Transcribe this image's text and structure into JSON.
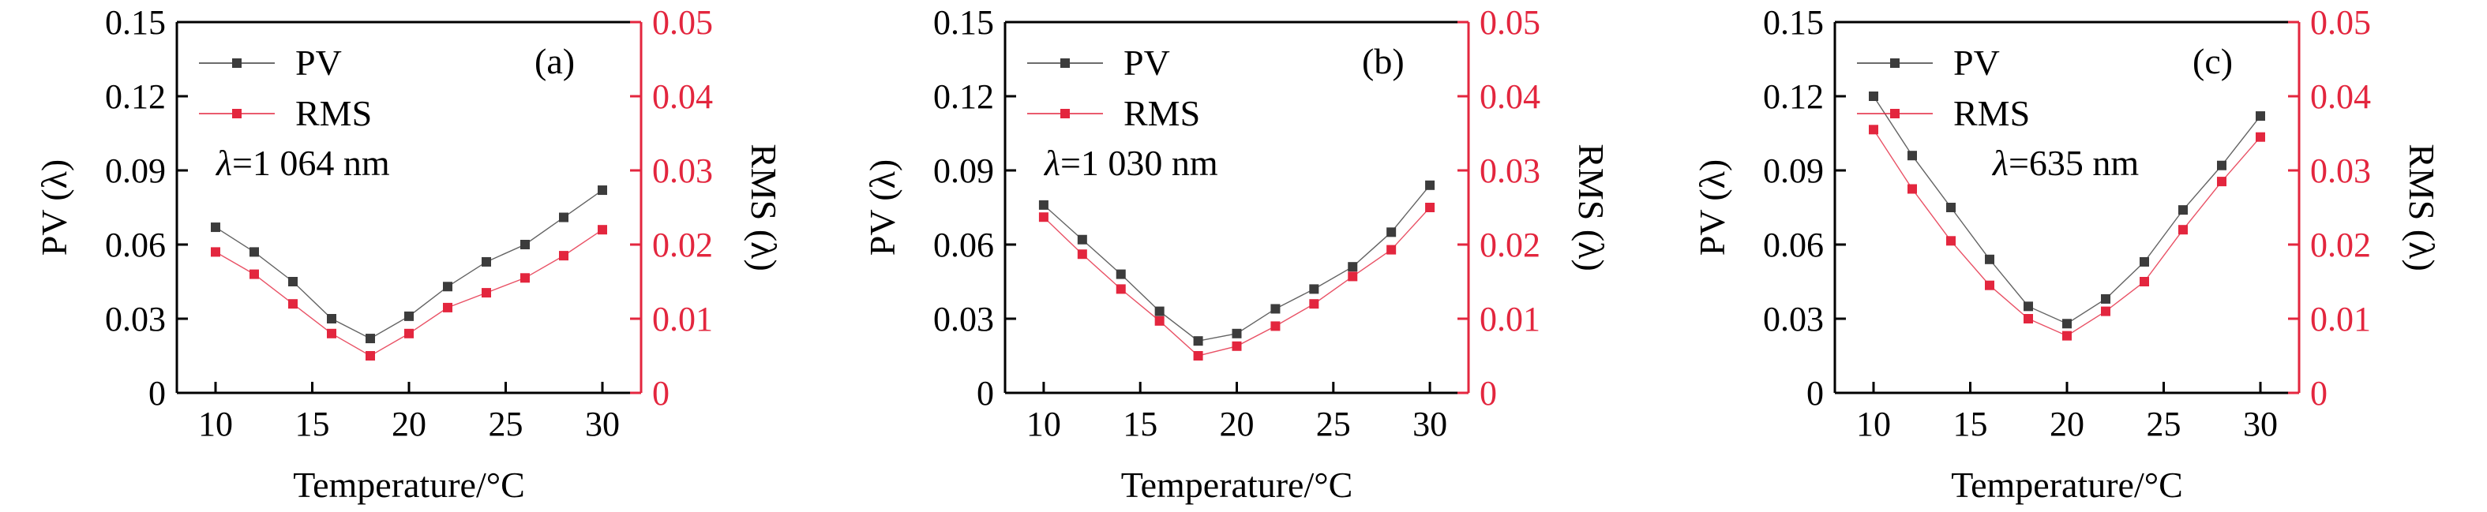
{
  "colors": {
    "pv": "#3c3c3c",
    "rms": "#e3263e",
    "axis": "#000000"
  },
  "chart_data": [
    {
      "type": "line",
      "panel_label": "(a)",
      "annotation_lambda": "λ",
      "annotation_value": "=1 064 nm",
      "xlabel": "Temperature/°C",
      "ylabel_left": "PV (λ)",
      "ylabel_right": "RMS (λ)",
      "xlim": [
        8,
        32
      ],
      "xticks": [
        10,
        15,
        20,
        25,
        30
      ],
      "ylim_left": [
        0,
        0.15
      ],
      "yticks_left": [
        "0",
        "0.03",
        "0.06",
        "0.09",
        "0.12",
        "0.15"
      ],
      "ylim_right": [
        0,
        0.05
      ],
      "yticks_right": [
        "0",
        "0.01",
        "0.02",
        "0.03",
        "0.04",
        "0.05"
      ],
      "x": [
        10,
        12,
        14,
        16,
        18,
        20,
        22,
        24,
        26,
        28,
        30
      ],
      "series": [
        {
          "name": "PV",
          "axis": "left",
          "values": [
            0.067,
            0.057,
            0.045,
            0.03,
            0.022,
            0.031,
            0.043,
            0.053,
            0.06,
            0.071,
            0.082
          ]
        },
        {
          "name": "RMS",
          "axis": "right",
          "values": [
            0.019,
            0.016,
            0.012,
            0.008,
            0.005,
            0.008,
            0.0115,
            0.0135,
            0.0155,
            0.0185,
            0.022
          ]
        }
      ]
    },
    {
      "type": "line",
      "panel_label": "(b)",
      "annotation_lambda": "λ",
      "annotation_value": "=1 030 nm",
      "xlabel": "Temperature/°C",
      "ylabel_left": "PV (λ)",
      "ylabel_right": "RMS (λ)",
      "xlim": [
        8,
        32
      ],
      "xticks": [
        10,
        15,
        20,
        25,
        30
      ],
      "ylim_left": [
        0,
        0.15
      ],
      "yticks_left": [
        "0",
        "0.03",
        "0.06",
        "0.09",
        "0.12",
        "0.15"
      ],
      "ylim_right": [
        0,
        0.05
      ],
      "yticks_right": [
        "0",
        "0.01",
        "0.02",
        "0.03",
        "0.04",
        "0.05"
      ],
      "x": [
        10,
        12,
        14,
        16,
        18,
        20,
        22,
        24,
        26,
        28,
        30
      ],
      "series": [
        {
          "name": "PV",
          "axis": "left",
          "values": [
            0.076,
            0.062,
            0.048,
            0.033,
            0.021,
            0.024,
            0.034,
            0.042,
            0.051,
            0.065,
            0.084
          ]
        },
        {
          "name": "RMS",
          "axis": "right",
          "values": [
            0.0237,
            0.0187,
            0.014,
            0.0097,
            0.005,
            0.0063,
            0.009,
            0.012,
            0.0157,
            0.0193,
            0.025
          ]
        }
      ]
    },
    {
      "type": "line",
      "panel_label": "(c)",
      "annotation_lambda": "λ",
      "annotation_value": "=635 nm",
      "xlabel": "Temperature/°C",
      "ylabel_left": "PV (λ)",
      "ylabel_right": "RMS (λ)",
      "xlim": [
        8,
        32
      ],
      "xticks": [
        10,
        15,
        20,
        25,
        30
      ],
      "ylim_left": [
        0,
        0.15
      ],
      "yticks_left": [
        "0",
        "0.03",
        "0.06",
        "0.09",
        "0.12",
        "0.15"
      ],
      "ylim_right": [
        0,
        0.05
      ],
      "yticks_right": [
        "0",
        "0.01",
        "0.02",
        "0.03",
        "0.04",
        "0.05"
      ],
      "x": [
        10,
        12,
        14,
        16,
        18,
        20,
        22,
        24,
        26,
        28,
        30
      ],
      "series": [
        {
          "name": "PV",
          "axis": "left",
          "values": [
            0.12,
            0.096,
            0.075,
            0.054,
            0.035,
            0.028,
            0.038,
            0.053,
            0.074,
            0.092,
            0.112
          ]
        },
        {
          "name": "RMS",
          "axis": "right",
          "values": [
            0.0355,
            0.0275,
            0.0205,
            0.0145,
            0.01,
            0.0077,
            0.011,
            0.015,
            0.022,
            0.0285,
            0.0345
          ]
        }
      ]
    }
  ]
}
